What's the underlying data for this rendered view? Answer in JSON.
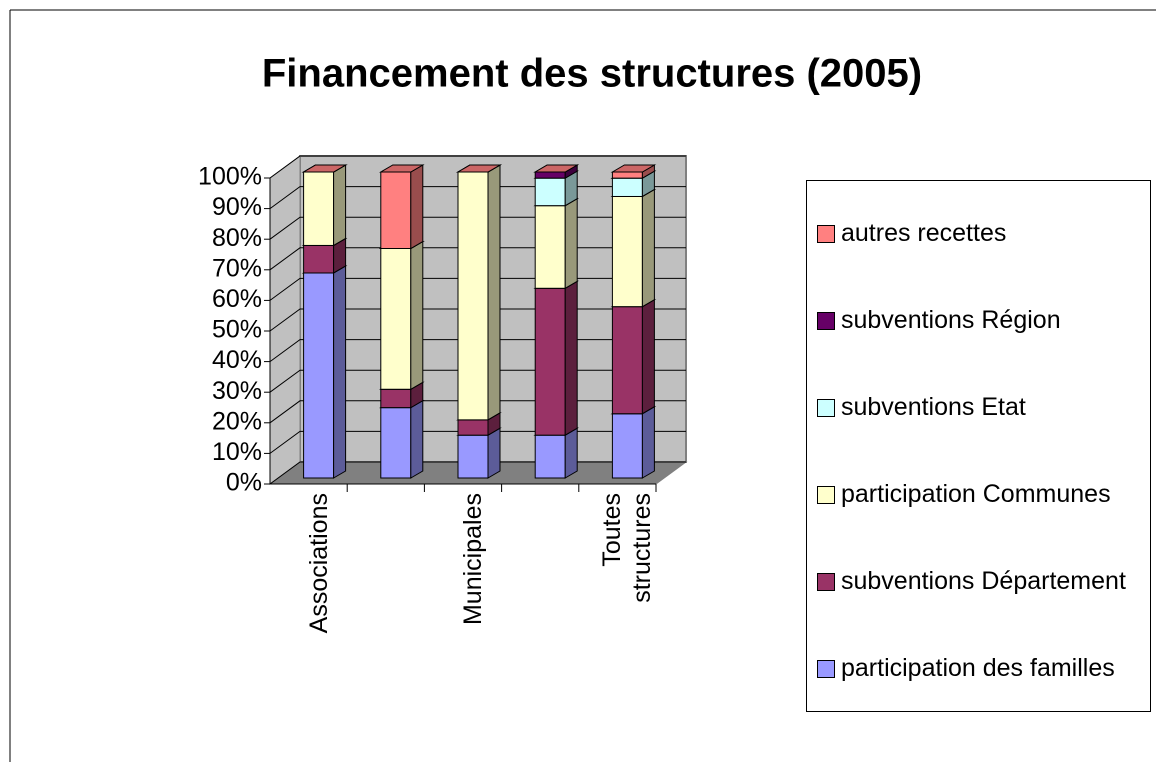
{
  "chart_data": {
    "type": "bar",
    "stacked": true,
    "title": "Financement des structures (2005)",
    "categories": [
      "Associations",
      null,
      "Municipales",
      null,
      "Toutes structures"
    ],
    "series": [
      {
        "name": "participation des familles",
        "color": "#9999ff",
        "values": [
          67,
          23,
          14,
          14,
          21
        ]
      },
      {
        "name": "subventions Département",
        "color": "#993366",
        "values": [
          9,
          6,
          5,
          48,
          35
        ]
      },
      {
        "name": "participation Communes",
        "color": "#ffffcc",
        "values": [
          24,
          46,
          81,
          27,
          36
        ]
      },
      {
        "name": "subventions Etat",
        "color": "#ccffff",
        "values": [
          0,
          0,
          0,
          9,
          6
        ]
      },
      {
        "name": "subventions Région",
        "color": "#660066",
        "values": [
          0,
          0,
          0,
          2,
          0
        ]
      },
      {
        "name": "autres recettes",
        "color": "#ff8080",
        "values": [
          0,
          25,
          0,
          0,
          2
        ]
      }
    ],
    "ylim": [
      0,
      100
    ],
    "yticks": [
      {
        "value": 0,
        "label": "0%"
      },
      {
        "value": 10,
        "label": "10%"
      },
      {
        "value": 20,
        "label": "20%"
      },
      {
        "value": 30,
        "label": "30%"
      },
      {
        "value": 40,
        "label": "40%"
      },
      {
        "value": 50,
        "label": "50%"
      },
      {
        "value": 60,
        "label": "60%"
      },
      {
        "value": 70,
        "label": "70%"
      },
      {
        "value": 80,
        "label": "80%"
      },
      {
        "value": 90,
        "label": "90%"
      },
      {
        "value": 100,
        "label": "100%"
      }
    ],
    "grid": true,
    "legend": "right"
  }
}
